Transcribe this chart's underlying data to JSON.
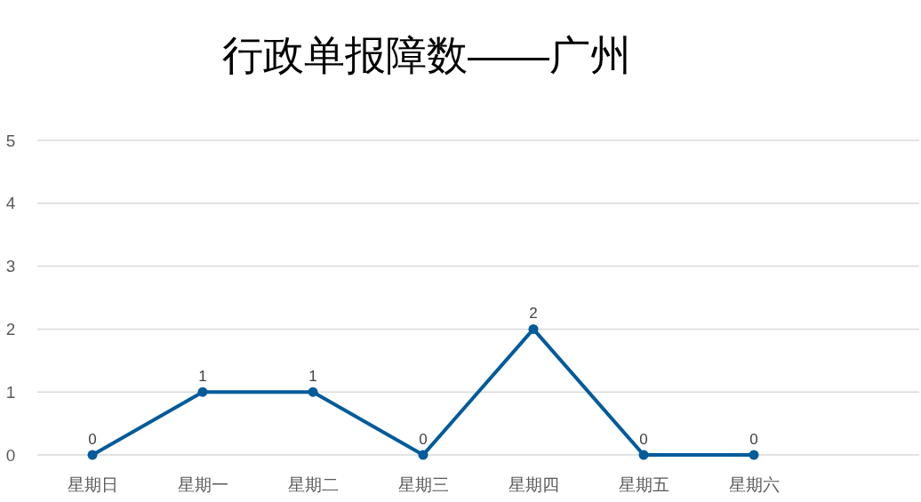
{
  "chart_data": {
    "type": "line",
    "title": "行政单报障数——广州",
    "categories": [
      "星期日",
      "星期一",
      "星期二",
      "星期三",
      "星期四",
      "星期五",
      "星期六",
      null
    ],
    "series": [
      {
        "color": "#005b9a",
        "values": [
          0,
          1,
          1,
          0,
          2,
          0,
          0,
          null
        ]
      }
    ],
    "ylim": [
      0,
      5
    ],
    "yticks": [
      0,
      1,
      2,
      3,
      4,
      5
    ],
    "grid": "y",
    "marker": "circle",
    "line_style": "solid",
    "data_labels": true
  }
}
